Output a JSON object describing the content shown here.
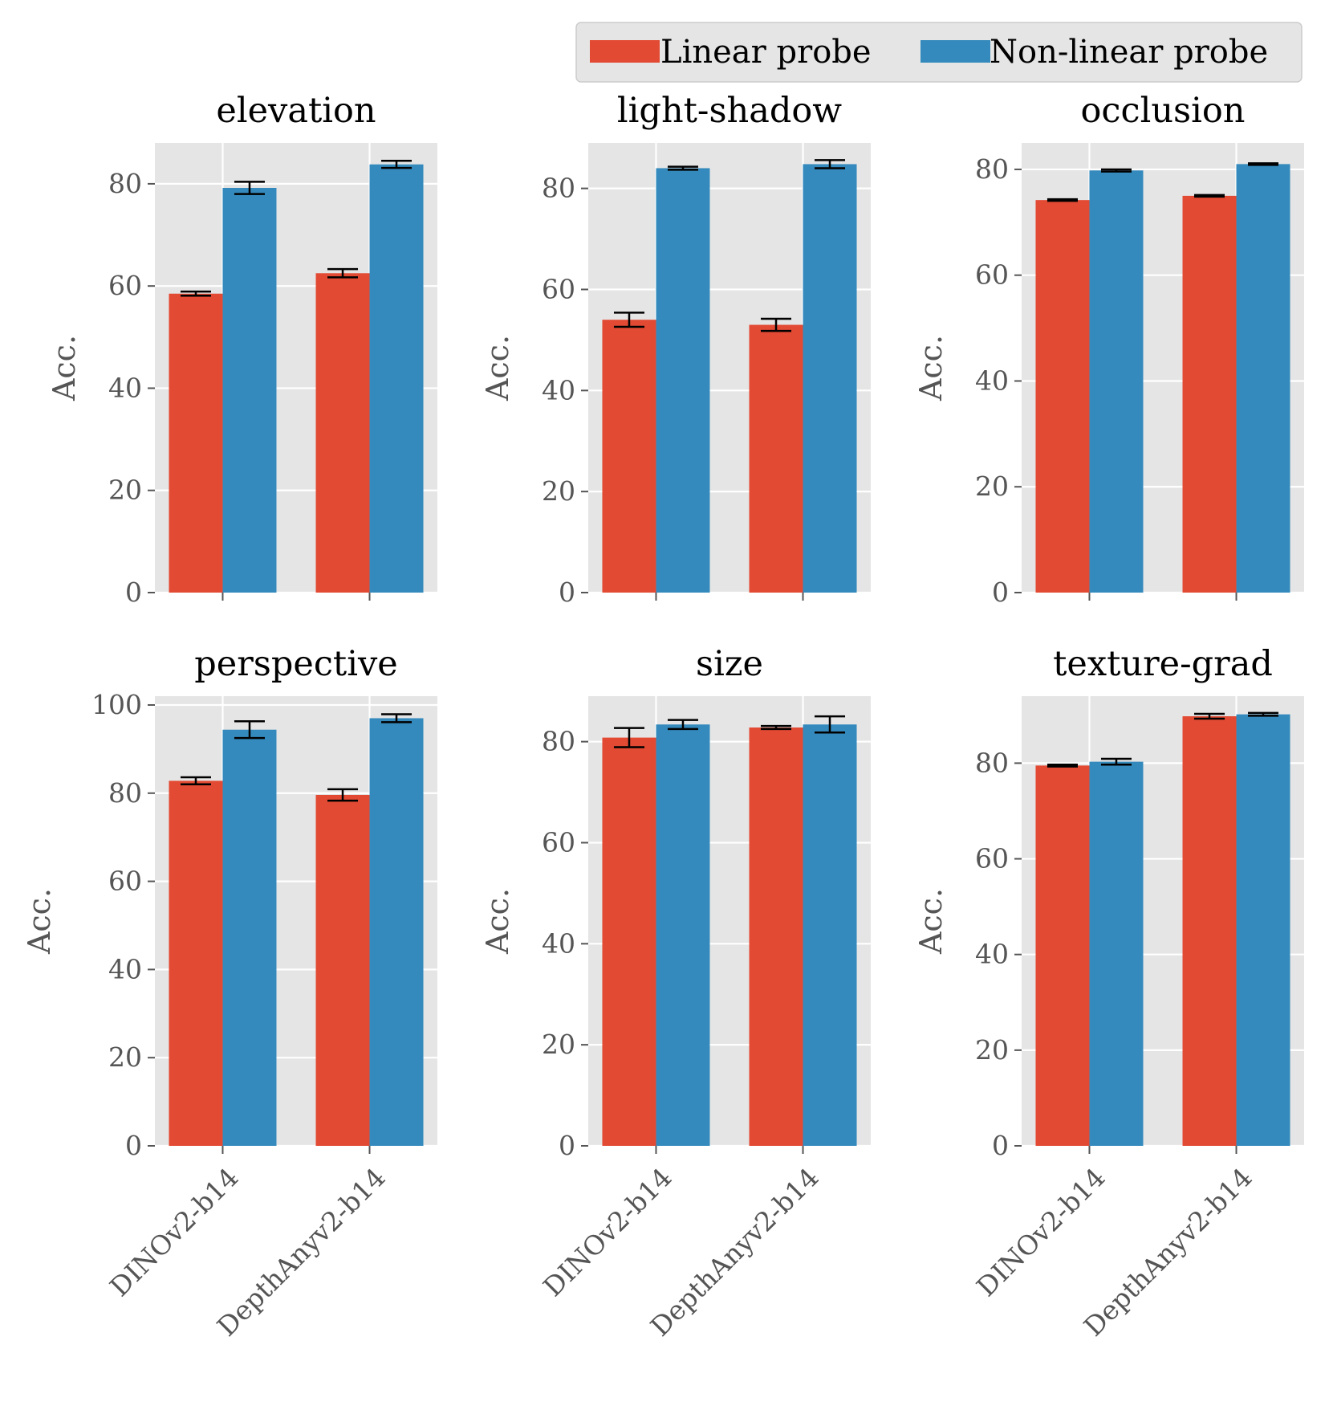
{
  "chart_data": {
    "type": "bar",
    "categories": [
      "DINOv2-b14",
      "DepthAnyv2-b14"
    ],
    "legend": {
      "placement": "top-right",
      "entries": [
        {
          "name": "Linear probe",
          "color": "#E24A33"
        },
        {
          "name": "Non-linear probe",
          "color": "#348ABD"
        }
      ]
    },
    "colors": {
      "linear": "#E24A33",
      "nonlinear": "#348ABD",
      "axes_bg": "#E5E5E5",
      "grid": "#FFFFFF"
    },
    "grid": true,
    "panels": [
      {
        "title": "elevation",
        "ylabel": "Acc.",
        "ylim": [
          0,
          88
        ],
        "yticks": [
          0,
          20,
          40,
          60,
          80
        ],
        "series": [
          {
            "name": "Linear probe",
            "values": [
              58.5,
              62.5
            ],
            "errors": [
              0.4,
              0.8
            ]
          },
          {
            "name": "Non-linear probe",
            "values": [
              79.2,
              83.8
            ],
            "errors": [
              1.2,
              0.7
            ]
          }
        ]
      },
      {
        "title": "light-shadow",
        "ylabel": "Acc.",
        "ylim": [
          0,
          89
        ],
        "yticks": [
          0,
          20,
          40,
          60,
          80
        ],
        "series": [
          {
            "name": "Linear probe",
            "values": [
              54.0,
              53.0
            ],
            "errors": [
              1.4,
              1.2
            ]
          },
          {
            "name": "Non-linear probe",
            "values": [
              84.0,
              84.8
            ],
            "errors": [
              0.3,
              0.8
            ]
          }
        ]
      },
      {
        "title": "occlusion",
        "ylabel": "Acc.",
        "ylim": [
          0,
          85
        ],
        "yticks": [
          0,
          20,
          40,
          60,
          80
        ],
        "series": [
          {
            "name": "Linear probe",
            "values": [
              74.2,
              75.0
            ],
            "errors": [
              0.15,
              0.15
            ]
          },
          {
            "name": "Non-linear probe",
            "values": [
              79.8,
              81.0
            ],
            "errors": [
              0.2,
              0.15
            ]
          }
        ]
      },
      {
        "title": "perspective",
        "ylabel": "Acc.",
        "ylim": [
          0,
          102
        ],
        "yticks": [
          0,
          20,
          40,
          60,
          80,
          100
        ],
        "series": [
          {
            "name": "Linear probe",
            "values": [
              82.8,
              79.6
            ],
            "errors": [
              0.8,
              1.3
            ]
          },
          {
            "name": "Non-linear probe",
            "values": [
              94.4,
              97.0
            ],
            "errors": [
              1.9,
              0.9
            ]
          }
        ]
      },
      {
        "title": "size",
        "ylabel": "Acc.",
        "ylim": [
          0,
          89
        ],
        "yticks": [
          0,
          20,
          40,
          60,
          80
        ],
        "series": [
          {
            "name": "Linear probe",
            "values": [
              80.8,
              82.8
            ],
            "errors": [
              1.9,
              0.3
            ]
          },
          {
            "name": "Non-linear probe",
            "values": [
              83.4,
              83.4
            ],
            "errors": [
              0.9,
              1.6
            ]
          }
        ]
      },
      {
        "title": "texture-grad",
        "ylabel": "Acc.",
        "ylim": [
          0,
          94
        ],
        "yticks": [
          0,
          20,
          40,
          60,
          80
        ],
        "series": [
          {
            "name": "Linear probe",
            "values": [
              79.5,
              89.8
            ],
            "errors": [
              0.2,
              0.5
            ]
          },
          {
            "name": "Non-linear probe",
            "values": [
              80.3,
              90.2
            ],
            "errors": [
              0.6,
              0.3
            ]
          }
        ]
      }
    ]
  }
}
